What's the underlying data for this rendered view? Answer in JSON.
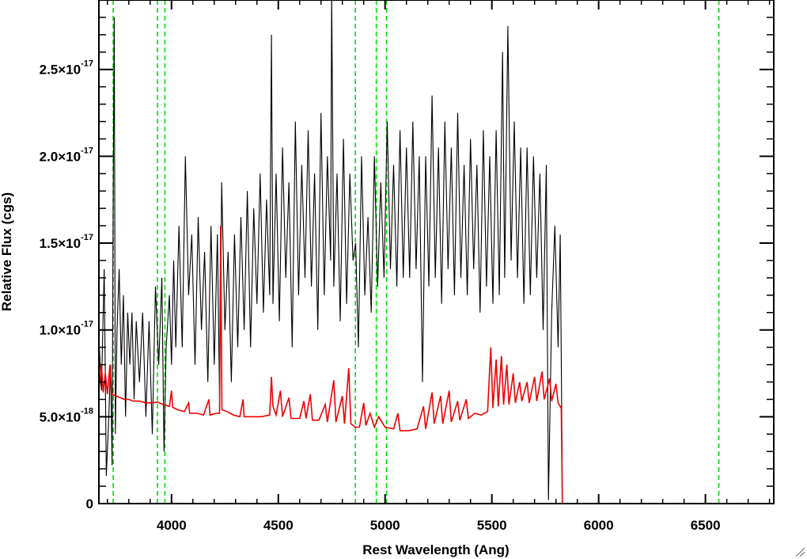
{
  "chart_data": {
    "type": "line",
    "xlabel": "Rest Wavelength (Ang)",
    "ylabel": "Relative Flux (cgs)",
    "xlim": [
      3660,
      6820
    ],
    "ylim": [
      0,
      2.9e-17
    ],
    "x_ticks": [
      {
        "value": 4000,
        "label": "4000"
      },
      {
        "value": 4500,
        "label": "4500"
      },
      {
        "value": 5000,
        "label": "5000"
      },
      {
        "value": 5500,
        "label": "5500"
      },
      {
        "value": 6000,
        "label": "6000"
      },
      {
        "value": 6500,
        "label": "6500"
      }
    ],
    "y_ticks": [
      {
        "value": 0,
        "mantissa": "0",
        "exponent": ""
      },
      {
        "value": 5e-18,
        "mantissa": "5.0×10",
        "exponent": "-18"
      },
      {
        "value": 1e-17,
        "mantissa": "1.0×10",
        "exponent": "-17"
      },
      {
        "value": 1.5e-17,
        "mantissa": "1.5×10",
        "exponent": "-17"
      },
      {
        "value": 2e-17,
        "mantissa": "2.0×10",
        "exponent": "-17"
      },
      {
        "value": 2.5e-17,
        "mantissa": "2.5×10",
        "exponent": "-17"
      }
    ],
    "reference_lines": {
      "color": "#00dd00",
      "style": "dashed",
      "x": [
        3727,
        3934,
        3969,
        4861,
        4959,
        5007,
        6563
      ]
    },
    "series": [
      {
        "color": "#000000",
        "points": [
          [
            3660,
            9.5e-18
          ],
          [
            3672,
            6.5e-18
          ],
          [
            3685,
            1.35e-17
          ],
          [
            3695,
            1.6e-18
          ],
          [
            3705,
            4.5e-18
          ],
          [
            3715,
            8e-18
          ],
          [
            3722,
            2.2e-18
          ],
          [
            3727,
            1.8e-17
          ],
          [
            3732,
            2.8e-17
          ],
          [
            3737,
            4e-18
          ],
          [
            3745,
            1e-17
          ],
          [
            3755,
            1.35e-17
          ],
          [
            3765,
            8e-18
          ],
          [
            3775,
            1.2e-17
          ],
          [
            3785,
            5e-18
          ],
          [
            3795,
            1.1e-17
          ],
          [
            3805,
            8e-18
          ],
          [
            3815,
            1.1e-17
          ],
          [
            3825,
            6e-18
          ],
          [
            3835,
            1.05e-17
          ],
          [
            3850,
            7e-18
          ],
          [
            3865,
            1.1e-17
          ],
          [
            3880,
            5e-18
          ],
          [
            3895,
            1.05e-17
          ],
          [
            3910,
            4e-18
          ],
          [
            3925,
            1.25e-17
          ],
          [
            3940,
            8e-18
          ],
          [
            3955,
            1.3e-17
          ],
          [
            3965,
            3e-18
          ],
          [
            3975,
            9e-18
          ],
          [
            3990,
            1.2e-17
          ],
          [
            4000,
            8e-18
          ],
          [
            4010,
            1.4e-17
          ],
          [
            4020,
            9e-18
          ],
          [
            4035,
            1.6e-17
          ],
          [
            4050,
            9e-18
          ],
          [
            4065,
            2e-17
          ],
          [
            4080,
            1.2e-17
          ],
          [
            4095,
            1.55e-17
          ],
          [
            4110,
            8e-18
          ],
          [
            4125,
            1.65e-17
          ],
          [
            4140,
            1e-17
          ],
          [
            4155,
            1.45e-17
          ],
          [
            4170,
            7e-18
          ],
          [
            4185,
            1.6e-17
          ],
          [
            4200,
            8e-18
          ],
          [
            4215,
            1.55e-17
          ],
          [
            4225,
            6e-18
          ],
          [
            4235,
            1.85e-17
          ],
          [
            4250,
            1e-17
          ],
          [
            4265,
            1.45e-17
          ],
          [
            4280,
            7e-18
          ],
          [
            4295,
            1.55e-17
          ],
          [
            4310,
            9e-18
          ],
          [
            4325,
            1.65e-17
          ],
          [
            4340,
            1e-17
          ],
          [
            4355,
            1.8e-17
          ],
          [
            4370,
            9e-18
          ],
          [
            4385,
            1.7e-17
          ],
          [
            4400,
            1.15e-17
          ],
          [
            4415,
            1.9e-17
          ],
          [
            4430,
            1.1e-17
          ],
          [
            4445,
            1.75e-17
          ],
          [
            4460,
            1.2e-17
          ],
          [
            4468,
            2.7e-17
          ],
          [
            4475,
            1.15e-17
          ],
          [
            4490,
            1.9e-17
          ],
          [
            4505,
            1.05e-17
          ],
          [
            4520,
            2.05e-17
          ],
          [
            4535,
            1.3e-17
          ],
          [
            4550,
            1.85e-17
          ],
          [
            4565,
            9e-18
          ],
          [
            4580,
            2.2e-17
          ],
          [
            4595,
            1.2e-17
          ],
          [
            4610,
            1.95e-17
          ],
          [
            4625,
            1.3e-17
          ],
          [
            4640,
            2.15e-17
          ],
          [
            4655,
            1.25e-17
          ],
          [
            4670,
            1.9e-17
          ],
          [
            4685,
            1e-17
          ],
          [
            4700,
            2.25e-17
          ],
          [
            4715,
            1.2e-17
          ],
          [
            4730,
            2e-17
          ],
          [
            4745,
            1.4e-17
          ],
          [
            4750,
            2.95e-17
          ],
          [
            4760,
            1.25e-17
          ],
          [
            4775,
            1.9e-17
          ],
          [
            4790,
            1.05e-17
          ],
          [
            4805,
            2.1e-17
          ],
          [
            4820,
            1.15e-17
          ],
          [
            4835,
            1.9e-17
          ],
          [
            4850,
            1.4e-17
          ],
          [
            4862,
            1.5e-17
          ],
          [
            4875,
            9e-18
          ],
          [
            4890,
            2e-17
          ],
          [
            4905,
            1.2e-17
          ],
          [
            4920,
            1.65e-17
          ],
          [
            4935,
            1.1e-17
          ],
          [
            4950,
            2e-17
          ],
          [
            4965,
            1.25e-17
          ],
          [
            4980,
            1.85e-17
          ],
          [
            4995,
            1.3e-17
          ],
          [
            5010,
            2.2e-17
          ],
          [
            5025,
            1.35e-17
          ],
          [
            5040,
            1.95e-17
          ],
          [
            5055,
            1.25e-17
          ],
          [
            5070,
            2.15e-17
          ],
          [
            5085,
            1.3e-17
          ],
          [
            5100,
            2.05e-17
          ],
          [
            5115,
            1.3e-17
          ],
          [
            5130,
            2.2e-17
          ],
          [
            5145,
            1.35e-17
          ],
          [
            5160,
            2e-17
          ],
          [
            5175,
            7e-18
          ],
          [
            5190,
            2e-17
          ],
          [
            5205,
            1.25e-17
          ],
          [
            5220,
            2.35e-17
          ],
          [
            5235,
            1.3e-17
          ],
          [
            5250,
            2.05e-17
          ],
          [
            5265,
            1.15e-17
          ],
          [
            5280,
            2.2e-17
          ],
          [
            5295,
            1.35e-17
          ],
          [
            5310,
            2.05e-17
          ],
          [
            5325,
            1.2e-17
          ],
          [
            5340,
            2.25e-17
          ],
          [
            5355,
            1.3e-17
          ],
          [
            5370,
            1.95e-17
          ],
          [
            5385,
            1.2e-17
          ],
          [
            5400,
            2.1e-17
          ],
          [
            5415,
            1.35e-17
          ],
          [
            5430,
            1.95e-17
          ],
          [
            5445,
            1.1e-17
          ],
          [
            5460,
            2.15e-17
          ],
          [
            5475,
            1.25e-17
          ],
          [
            5490,
            2e-17
          ],
          [
            5505,
            1.15e-17
          ],
          [
            5520,
            2.15e-17
          ],
          [
            5535,
            1.2e-17
          ],
          [
            5550,
            2.6e-17
          ],
          [
            5560,
            1.3e-17
          ],
          [
            5575,
            2.75e-17
          ],
          [
            5590,
            1.4e-17
          ],
          [
            5605,
            2.2e-17
          ],
          [
            5620,
            1.3e-17
          ],
          [
            5635,
            2.05e-17
          ],
          [
            5650,
            1.15e-17
          ],
          [
            5665,
            2.05e-17
          ],
          [
            5680,
            1.2e-17
          ],
          [
            5695,
            2e-17
          ],
          [
            5710,
            1.3e-17
          ],
          [
            5725,
            1.9e-17
          ],
          [
            5740,
            1e-17
          ],
          [
            5755,
            1.95e-17
          ],
          [
            5765,
            2e-19
          ],
          [
            5780,
            1.1e-17
          ],
          [
            5795,
            1.6e-17
          ],
          [
            5810,
            9e-18
          ],
          [
            5820,
            1.55e-17
          ],
          [
            5828,
            4e-18
          ],
          [
            5830,
            0
          ],
          [
            6820,
            0
          ]
        ]
      },
      {
        "color": "#ee0000",
        "points": [
          [
            3660,
            6.5e-18
          ],
          [
            3672,
            8e-18
          ],
          [
            3680,
            6.4e-18
          ],
          [
            3690,
            7.5e-18
          ],
          [
            3700,
            6.3e-18
          ],
          [
            3712,
            8e-18
          ],
          [
            3720,
            6.3e-18
          ],
          [
            3740,
            6.2e-18
          ],
          [
            3760,
            6.1e-18
          ],
          [
            3780,
            6e-18
          ],
          [
            3800,
            6e-18
          ],
          [
            3820,
            5.9e-18
          ],
          [
            3850,
            5.9e-18
          ],
          [
            3880,
            5.8e-18
          ],
          [
            3910,
            5.8e-18
          ],
          [
            3935,
            5.85e-18
          ],
          [
            3960,
            5.7e-18
          ],
          [
            3990,
            5.6e-18
          ],
          [
            4000,
            6.5e-18
          ],
          [
            4005,
            5.55e-18
          ],
          [
            4030,
            5.4e-18
          ],
          [
            4060,
            5.3e-18
          ],
          [
            4080,
            5.8e-18
          ],
          [
            4085,
            5.2e-18
          ],
          [
            4120,
            5.2e-18
          ],
          [
            4150,
            5.1e-18
          ],
          [
            4175,
            6e-18
          ],
          [
            4180,
            5.1e-18
          ],
          [
            4210,
            5.2e-18
          ],
          [
            4225,
            5.2e-18
          ],
          [
            4230,
            1.6e-17
          ],
          [
            4236,
            5.4e-18
          ],
          [
            4260,
            5.3e-18
          ],
          [
            4290,
            5.1e-18
          ],
          [
            4320,
            5e-18
          ],
          [
            4335,
            6e-18
          ],
          [
            4340,
            5e-18
          ],
          [
            4380,
            5e-18
          ],
          [
            4420,
            5e-18
          ],
          [
            4460,
            5.1e-18
          ],
          [
            4468,
            7.3e-18
          ],
          [
            4475,
            5.6e-18
          ],
          [
            4490,
            5.1e-18
          ],
          [
            4510,
            6.5e-18
          ],
          [
            4520,
            5e-18
          ],
          [
            4550,
            6.1e-18
          ],
          [
            4560,
            4.9e-18
          ],
          [
            4600,
            4.9e-18
          ],
          [
            4620,
            5.9e-18
          ],
          [
            4630,
            4.9e-18
          ],
          [
            4650,
            6.3e-18
          ],
          [
            4660,
            4.8e-18
          ],
          [
            4690,
            4.8e-18
          ],
          [
            4720,
            5.7e-18
          ],
          [
            4730,
            4.7e-18
          ],
          [
            4760,
            7.1e-18
          ],
          [
            4770,
            4.7e-18
          ],
          [
            4800,
            6.2e-18
          ],
          [
            4810,
            4.6e-18
          ],
          [
            4830,
            7.8e-18
          ],
          [
            4840,
            4.6e-18
          ],
          [
            4860,
            4.4e-18
          ],
          [
            4880,
            4.4e-18
          ],
          [
            4900,
            5.8e-18
          ],
          [
            4910,
            4.5e-18
          ],
          [
            4930,
            5.2e-18
          ],
          [
            4950,
            4.4e-18
          ],
          [
            4970,
            5e-18
          ],
          [
            5000,
            4.4e-18
          ],
          [
            5040,
            4.3e-18
          ],
          [
            5060,
            5.2e-18
          ],
          [
            5070,
            4.2e-18
          ],
          [
            5110,
            4.2e-18
          ],
          [
            5150,
            4.3e-18
          ],
          [
            5180,
            5.6e-18
          ],
          [
            5190,
            4.3e-18
          ],
          [
            5220,
            6.4e-18
          ],
          [
            5230,
            4.6e-18
          ],
          [
            5260,
            6.2e-18
          ],
          [
            5270,
            4.6e-18
          ],
          [
            5300,
            6.5e-18
          ],
          [
            5310,
            4.7e-18
          ],
          [
            5340,
            5.9e-18
          ],
          [
            5350,
            4.8e-18
          ],
          [
            5380,
            6e-18
          ],
          [
            5390,
            4.9e-18
          ],
          [
            5420,
            5.2e-18
          ],
          [
            5450,
            5.1e-18
          ],
          [
            5480,
            5.3e-18
          ],
          [
            5495,
            9e-18
          ],
          [
            5505,
            5.5e-18
          ],
          [
            5520,
            8.3e-18
          ],
          [
            5530,
            5.6e-18
          ],
          [
            5545,
            8.5e-18
          ],
          [
            5555,
            5.7e-18
          ],
          [
            5570,
            8e-18
          ],
          [
            5580,
            5.7e-18
          ],
          [
            5600,
            7.5e-18
          ],
          [
            5610,
            5.8e-18
          ],
          [
            5630,
            7e-18
          ],
          [
            5640,
            5.9e-18
          ],
          [
            5665,
            7e-18
          ],
          [
            5675,
            5.8e-18
          ],
          [
            5700,
            7.3e-18
          ],
          [
            5710,
            5.9e-18
          ],
          [
            5735,
            7.6e-18
          ],
          [
            5745,
            6e-18
          ],
          [
            5770,
            7.2e-18
          ],
          [
            5780,
            5.9e-18
          ],
          [
            5800,
            6.9e-18
          ],
          [
            5810,
            5.8e-18
          ],
          [
            5825,
            5.5e-18
          ],
          [
            5830,
            0
          ],
          [
            6820,
            0
          ]
        ]
      }
    ]
  },
  "window": {
    "grip_icon": "resize-grip-icon"
  }
}
